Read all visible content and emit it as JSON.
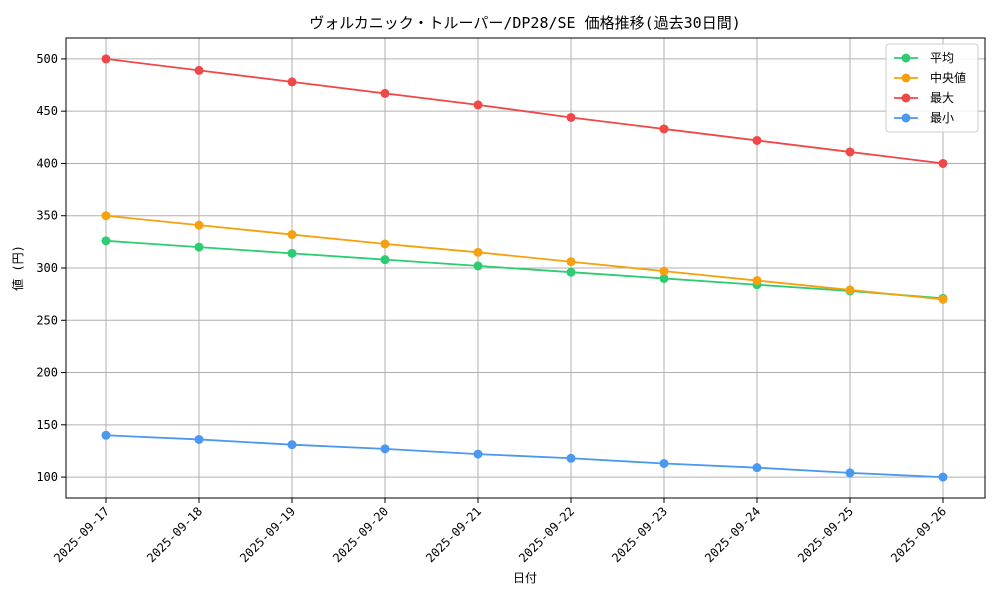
{
  "chart_data": {
    "type": "line",
    "title": "ヴォルカニック・トルーパー/DP28/SE 価格推移(過去30日間)",
    "xlabel": "日付",
    "ylabel": "値 (円)",
    "x": [
      "2025-09-17",
      "2025-09-18",
      "2025-09-19",
      "2025-09-20",
      "2025-09-21",
      "2025-09-22",
      "2025-09-23",
      "2025-09-24",
      "2025-09-25",
      "2025-09-26"
    ],
    "ylim": [
      80,
      520
    ],
    "yticks": [
      100,
      150,
      200,
      250,
      300,
      350,
      400,
      450,
      500
    ],
    "grid": true,
    "legend_position": "top-right",
    "series": [
      {
        "name": "平均",
        "color": "#2ecc71",
        "values": [
          326,
          320,
          314,
          308,
          302,
          296,
          290,
          284,
          278,
          271
        ]
      },
      {
        "name": "中央値",
        "color": "#f5a10f",
        "values": [
          350,
          341,
          332,
          323,
          315,
          306,
          297,
          288,
          279,
          270
        ]
      },
      {
        "name": "最大",
        "color": "#f04848",
        "values": [
          500,
          489,
          478,
          467,
          456,
          444,
          433,
          422,
          411,
          400
        ]
      },
      {
        "name": "最小",
        "color": "#4a98f0",
        "values": [
          140,
          136,
          131,
          127,
          122,
          118,
          113,
          109,
          104,
          100
        ]
      }
    ]
  }
}
